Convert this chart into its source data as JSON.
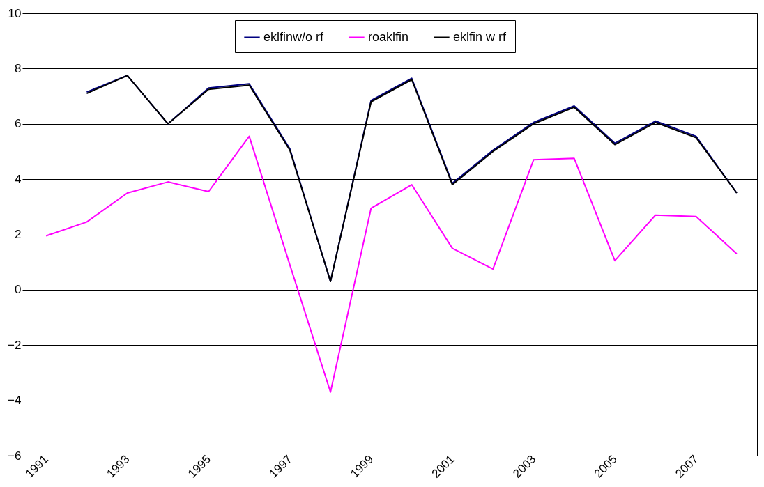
{
  "chart_data": {
    "type": "line",
    "categories": [
      "1991",
      null,
      "1993",
      null,
      "1995",
      null,
      "1997",
      null,
      "1999",
      null,
      "2001",
      null,
      "2003",
      null,
      "2005",
      null,
      "2007",
      null
    ],
    "series": [
      {
        "name": "eklfinw/o rf",
        "color": "#000080",
        "values": [
          null,
          7.15,
          7.75,
          6.0,
          7.3,
          7.45,
          5.1,
          0.3,
          6.85,
          7.65,
          3.85,
          5.05,
          6.05,
          6.65,
          5.3,
          6.1,
          5.55,
          3.5
        ]
      },
      {
        "name": "roaklfin",
        "color": "#ff00ff",
        "values": [
          1.95,
          2.45,
          3.5,
          3.9,
          3.55,
          5.55,
          0.9,
          -3.7,
          2.95,
          3.8,
          1.5,
          0.75,
          4.7,
          4.75,
          1.05,
          2.7,
          2.65,
          1.3
        ]
      },
      {
        "name": "eklfin w rf",
        "color": "#000000",
        "values": [
          null,
          7.1,
          7.75,
          6.0,
          7.25,
          7.4,
          5.05,
          0.3,
          6.8,
          7.6,
          3.8,
          5.0,
          6.0,
          6.6,
          5.25,
          6.05,
          5.5,
          3.5
        ]
      }
    ],
    "ylim": [
      -6,
      10
    ],
    "yticks": [
      -6,
      -4,
      -2,
      0,
      2,
      4,
      6,
      8,
      10
    ],
    "grid": "y",
    "legend": "top",
    "marker": "none",
    "line_style": "solid"
  }
}
